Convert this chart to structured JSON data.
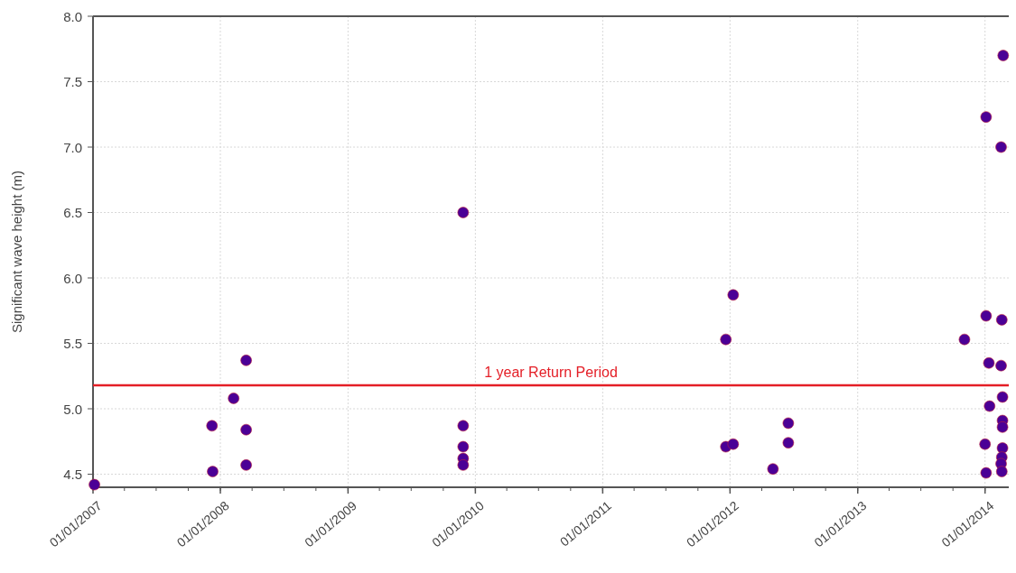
{
  "chart_data": {
    "type": "scatter",
    "ylabel": "Significant wave height (m)",
    "x": [
      "2007-01-05",
      "2007-12-08",
      "2007-12-10",
      "2008-02-08",
      "2008-03-15",
      "2008-03-15",
      "2008-03-15",
      "2009-11-27",
      "2009-11-27",
      "2009-11-27",
      "2009-11-27",
      "2009-11-27",
      "2012-01-10",
      "2011-12-20",
      "2011-12-20",
      "2012-01-10",
      "2012-05-03",
      "2012-06-16",
      "2012-06-16",
      "2014-02-22",
      "2014-01-04",
      "2014-02-16",
      "2014-01-04",
      "2014-02-18",
      "2013-11-03",
      "2014-01-12",
      "2014-02-16",
      "2014-02-20",
      "2014-01-14",
      "2014-02-20",
      "2014-02-20",
      "2014-01-01",
      "2014-02-20",
      "2014-02-18",
      "2014-02-16",
      "2014-01-04",
      "2014-02-18"
    ],
    "series": [
      {
        "color": "#4b0096",
        "values": [
          4.42,
          4.87,
          4.52,
          5.08,
          5.37,
          4.84,
          4.57,
          6.5,
          4.87,
          4.71,
          4.62,
          4.57,
          5.87,
          5.53,
          4.71,
          4.73,
          4.54,
          4.89,
          4.74,
          7.7,
          7.23,
          7.0,
          5.71,
          5.68,
          5.53,
          5.35,
          5.33,
          5.09,
          5.02,
          4.91,
          4.86,
          4.73,
          4.7,
          4.63,
          4.58,
          4.51,
          4.52
        ]
      }
    ],
    "marker": "circle",
    "xlim": [
      "2007-01-01",
      "2014-03-10"
    ],
    "xticks": [
      {
        "value": "2007-01-01",
        "label": "01/01/2007"
      },
      {
        "value": "2008-01-01",
        "label": "01/01/2008"
      },
      {
        "value": "2009-01-01",
        "label": "01/01/2009"
      },
      {
        "value": "2010-01-01",
        "label": "01/01/2010"
      },
      {
        "value": "2011-01-01",
        "label": "01/01/2011"
      },
      {
        "value": "2012-01-01",
        "label": "01/01/2012"
      },
      {
        "value": "2013-01-01",
        "label": "01/01/2013"
      },
      {
        "value": "2014-01-01",
        "label": "01/01/2014"
      }
    ],
    "ylim": [
      4.4,
      8.0
    ],
    "yticks": [
      4.5,
      {
        "value": 5.0,
        "label": "5.0"
      },
      5.5,
      {
        "value": 6.0,
        "label": "6.0"
      },
      6.5,
      {
        "value": 7.0,
        "label": "7.0"
      },
      7.5,
      {
        "value": 8.0,
        "label": "8.0"
      }
    ],
    "grid": true,
    "ref_lines": [
      {
        "axis": "y",
        "value": 5.18,
        "label": "1 year Return Period",
        "color": "#e41e26"
      }
    ]
  }
}
